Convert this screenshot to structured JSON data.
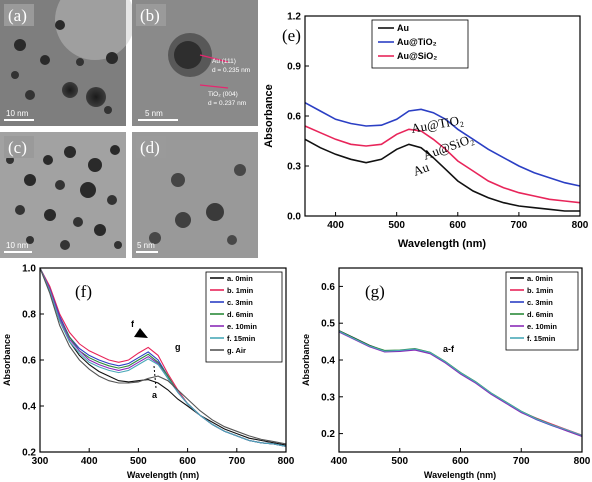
{
  "tem": {
    "a": {
      "letter": "(a)",
      "scale": "10 nm"
    },
    "b": {
      "letter": "(b)",
      "scale": "5 nm",
      "lattice1": "Au (111)",
      "spacing1": "d = 0.235 nm",
      "lattice2": "TiO₂ (004)",
      "spacing2": "d = 0.237 nm"
    },
    "c": {
      "letter": "(c)",
      "scale": "10 nm"
    },
    "d": {
      "letter": "(d)",
      "scale": "5 nm"
    }
  },
  "chart_data": [
    {
      "id": "e",
      "type": "line",
      "panel_label": "(e)",
      "xlabel": "Wavelength (nm)",
      "ylabel": "Absorbance",
      "xlim": [
        350,
        800
      ],
      "ylim": [
        0.0,
        1.2
      ],
      "xticks": [
        400,
        500,
        600,
        700,
        800
      ],
      "yticks": [
        0.0,
        0.3,
        0.6,
        0.9,
        1.2
      ],
      "ytick_labels": [
        "0.0",
        "0.3",
        "0.6",
        "0.9",
        "1.2"
      ],
      "x": [
        350,
        375,
        400,
        425,
        450,
        475,
        500,
        520,
        540,
        560,
        580,
        600,
        625,
        650,
        675,
        700,
        725,
        750,
        775,
        800
      ],
      "series": [
        {
          "name": "Au",
          "color": "#111111",
          "values": [
            0.46,
            0.41,
            0.37,
            0.34,
            0.32,
            0.34,
            0.4,
            0.43,
            0.41,
            0.35,
            0.28,
            0.21,
            0.15,
            0.11,
            0.08,
            0.06,
            0.05,
            0.04,
            0.03,
            0.03
          ]
        },
        {
          "name": "Au@TiO₂",
          "color": "#2b3fc4",
          "values": [
            0.68,
            0.63,
            0.58,
            0.555,
            0.54,
            0.545,
            0.58,
            0.63,
            0.64,
            0.62,
            0.58,
            0.52,
            0.46,
            0.4,
            0.35,
            0.3,
            0.26,
            0.23,
            0.2,
            0.18
          ]
        },
        {
          "name": "Au@SiO₂",
          "color": "#e8255a",
          "values": [
            0.54,
            0.5,
            0.46,
            0.43,
            0.42,
            0.43,
            0.49,
            0.52,
            0.51,
            0.46,
            0.4,
            0.33,
            0.27,
            0.21,
            0.17,
            0.14,
            0.12,
            0.1,
            0.09,
            0.08
          ]
        }
      ],
      "annotations": [
        "Au@TiO₂",
        "Au@SiO₂",
        "Au"
      ],
      "legend_position": "top-left"
    },
    {
      "id": "f",
      "type": "line",
      "panel_label": "(f)",
      "xlabel": "Wavelength (nm)",
      "ylabel": "Absorbance",
      "xlim": [
        300,
        800
      ],
      "ylim": [
        0.2,
        1.0
      ],
      "xticks": [
        300,
        400,
        500,
        600,
        700,
        800
      ],
      "yticks": [
        0.2,
        0.4,
        0.6,
        0.8,
        1.0
      ],
      "ytick_labels": [
        "0.2",
        "0.4",
        "0.6",
        "0.8",
        "1.0"
      ],
      "x": [
        300,
        320,
        340,
        360,
        380,
        400,
        420,
        440,
        460,
        480,
        500,
        520,
        540,
        560,
        580,
        600,
        625,
        650,
        675,
        700,
        725,
        750,
        775,
        800
      ],
      "series": [
        {
          "name": "a. 0min",
          "color": "#111111",
          "values": [
            1.0,
            0.9,
            0.77,
            0.68,
            0.62,
            0.58,
            0.55,
            0.53,
            0.51,
            0.505,
            0.51,
            0.515,
            0.5,
            0.47,
            0.43,
            0.4,
            0.36,
            0.33,
            0.3,
            0.28,
            0.26,
            0.25,
            0.24,
            0.23
          ]
        },
        {
          "name": "b. 1min",
          "color": "#e8255a",
          "values": [
            1.0,
            0.92,
            0.8,
            0.72,
            0.67,
            0.64,
            0.62,
            0.6,
            0.59,
            0.6,
            0.63,
            0.655,
            0.62,
            0.54,
            0.47,
            0.41,
            0.36,
            0.32,
            0.29,
            0.27,
            0.25,
            0.24,
            0.235,
            0.225
          ]
        },
        {
          "name": "c. 3min",
          "color": "#2b3fc4",
          "values": [
            1.0,
            0.91,
            0.79,
            0.7,
            0.65,
            0.62,
            0.6,
            0.585,
            0.575,
            0.585,
            0.61,
            0.635,
            0.6,
            0.53,
            0.46,
            0.41,
            0.36,
            0.32,
            0.29,
            0.27,
            0.25,
            0.24,
            0.235,
            0.225
          ]
        },
        {
          "name": "d. 6min",
          "color": "#2c8a3a",
          "values": [
            1.0,
            0.91,
            0.78,
            0.7,
            0.64,
            0.61,
            0.59,
            0.575,
            0.565,
            0.575,
            0.6,
            0.625,
            0.59,
            0.53,
            0.46,
            0.41,
            0.36,
            0.32,
            0.29,
            0.27,
            0.25,
            0.24,
            0.235,
            0.225
          ]
        },
        {
          "name": "e. 10min",
          "color": "#8a2bb8",
          "values": [
            1.0,
            0.91,
            0.78,
            0.69,
            0.64,
            0.6,
            0.58,
            0.565,
            0.555,
            0.565,
            0.59,
            0.615,
            0.585,
            0.52,
            0.46,
            0.41,
            0.36,
            0.32,
            0.29,
            0.27,
            0.25,
            0.24,
            0.235,
            0.225
          ]
        },
        {
          "name": "f. 15min",
          "color": "#4aa8b8",
          "values": [
            1.0,
            0.9,
            0.77,
            0.68,
            0.63,
            0.59,
            0.57,
            0.555,
            0.545,
            0.555,
            0.58,
            0.605,
            0.58,
            0.52,
            0.46,
            0.41,
            0.36,
            0.32,
            0.29,
            0.27,
            0.25,
            0.24,
            0.235,
            0.225
          ]
        },
        {
          "name": "g. Air",
          "color": "#555555",
          "values": [
            1.0,
            0.89,
            0.75,
            0.66,
            0.6,
            0.56,
            0.53,
            0.51,
            0.5,
            0.5,
            0.505,
            0.52,
            0.53,
            0.51,
            0.47,
            0.43,
            0.38,
            0.34,
            0.31,
            0.29,
            0.27,
            0.255,
            0.245,
            0.235
          ]
        }
      ],
      "annotations": [
        "f",
        "g",
        "a"
      ],
      "legend_position": "top-right"
    },
    {
      "id": "g",
      "type": "line",
      "panel_label": "(g)",
      "xlabel": "Wavelength (nm)",
      "ylabel": "Absorbance",
      "xlim": [
        400,
        800
      ],
      "ylim": [
        0.15,
        0.65
      ],
      "xticks": [
        400,
        500,
        600,
        700,
        800
      ],
      "yticks": [
        0.2,
        0.3,
        0.4,
        0.5,
        0.6
      ],
      "ytick_labels": [
        "0.2",
        "0.3",
        "0.4",
        "0.5",
        "0.6"
      ],
      "x": [
        400,
        425,
        450,
        475,
        500,
        525,
        550,
        575,
        600,
        625,
        650,
        675,
        700,
        725,
        750,
        775,
        800
      ],
      "series": [
        {
          "name": "a. 0min",
          "color": "#111111",
          "values": [
            0.48,
            0.46,
            0.44,
            0.425,
            0.425,
            0.43,
            0.42,
            0.395,
            0.365,
            0.34,
            0.31,
            0.285,
            0.26,
            0.24,
            0.225,
            0.21,
            0.195
          ]
        },
        {
          "name": "b. 1min",
          "color": "#e8255a",
          "values": [
            0.478,
            0.458,
            0.438,
            0.423,
            0.424,
            0.429,
            0.419,
            0.394,
            0.364,
            0.339,
            0.309,
            0.284,
            0.259,
            0.242,
            0.226,
            0.211,
            0.196
          ]
        },
        {
          "name": "c. 3min",
          "color": "#2b3fc4",
          "values": [
            0.477,
            0.457,
            0.437,
            0.424,
            0.425,
            0.428,
            0.418,
            0.393,
            0.363,
            0.338,
            0.308,
            0.283,
            0.258,
            0.238,
            0.222,
            0.208,
            0.193
          ]
        },
        {
          "name": "d. 6min",
          "color": "#2c8a3a",
          "values": [
            0.479,
            0.459,
            0.439,
            0.426,
            0.427,
            0.431,
            0.421,
            0.396,
            0.366,
            0.341,
            0.311,
            0.286,
            0.261,
            0.241,
            0.224,
            0.209,
            0.194
          ]
        },
        {
          "name": "e. 10min",
          "color": "#8a2bb8",
          "values": [
            0.476,
            0.456,
            0.436,
            0.422,
            0.423,
            0.427,
            0.417,
            0.392,
            0.362,
            0.337,
            0.307,
            0.282,
            0.257,
            0.239,
            0.223,
            0.207,
            0.192
          ]
        },
        {
          "name": "f. 15min",
          "color": "#4aa8b8",
          "values": [
            0.478,
            0.458,
            0.438,
            0.424,
            0.426,
            0.43,
            0.42,
            0.395,
            0.365,
            0.34,
            0.31,
            0.285,
            0.26,
            0.24,
            0.224,
            0.21,
            0.195
          ]
        }
      ],
      "annotations": [
        "a-f"
      ],
      "legend_position": "top-right"
    }
  ]
}
